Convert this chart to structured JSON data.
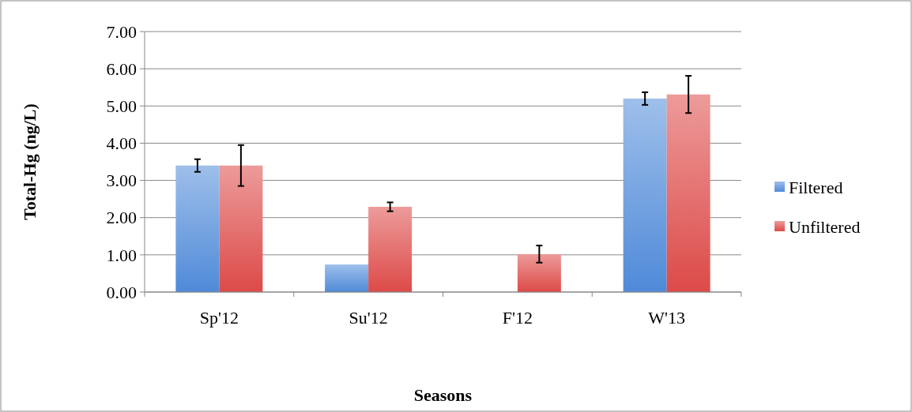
{
  "chart_data": {
    "type": "bar",
    "xlabel": "Seasons",
    "ylabel": "Total-Hg (ng/L)",
    "categories": [
      "Sp'12",
      "Su'12",
      "F'12",
      "W'13"
    ],
    "series": [
      {
        "name": "Filtered",
        "color": "#4f8ad8",
        "values": [
          3.4,
          0.74,
          0,
          5.2
        ],
        "errors": [
          0.17,
          null,
          null,
          0.17
        ]
      },
      {
        "name": "Unfiltered",
        "color": "#dc4a48",
        "values": [
          3.4,
          2.29,
          1.02,
          5.31
        ],
        "errors": [
          0.55,
          0.12,
          0.23,
          0.5
        ]
      }
    ],
    "ylim": [
      0,
      7
    ],
    "yticks": [
      {
        "value": 0,
        "label": "0.00"
      },
      {
        "value": 1,
        "label": "1.00"
      },
      {
        "value": 2,
        "label": "2.00"
      },
      {
        "value": 3,
        "label": "3.00"
      },
      {
        "value": 4,
        "label": "4.00"
      },
      {
        "value": 5,
        "label": "5.00"
      },
      {
        "value": 6,
        "label": "6.00"
      },
      {
        "value": 7,
        "label": "7.00"
      }
    ],
    "grid": "y",
    "legend": "right"
  }
}
